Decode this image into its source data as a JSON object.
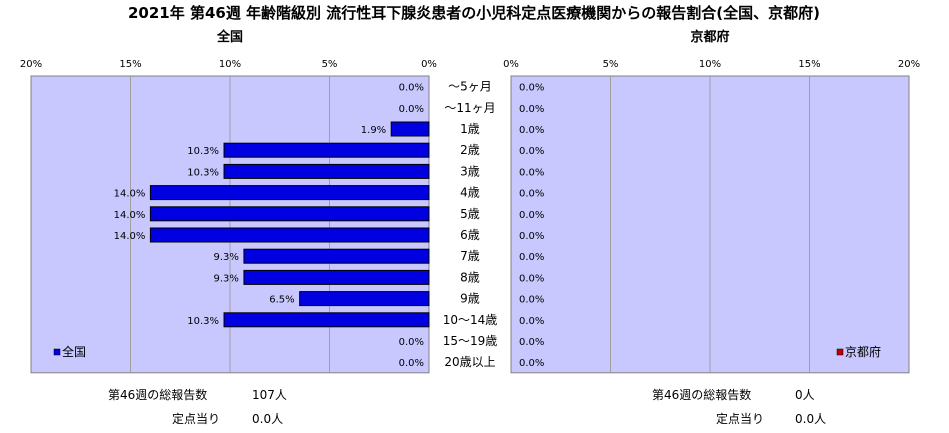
{
  "title": "2021年 第46週 年齢階級別 流行性耳下腺炎患者の小児科定点医療機関からの報告割合(全国、京都府)",
  "colors": {
    "plot_bg": "#C8C8FF",
    "national_bar": "#0000E0",
    "kyoto_bar": "#C00000"
  },
  "chart_data": [
    {
      "type": "bar",
      "orientation": "horizontal",
      "direction": "right-to-left",
      "title": "全国",
      "categories": [
        "～5ヶ月",
        "～11ヶ月",
        "1歳",
        "2歳",
        "3歳",
        "4歳",
        "5歳",
        "6歳",
        "7歳",
        "8歳",
        "9歳",
        "10～14歳",
        "15～19歳",
        "20歳以上"
      ],
      "series": [
        {
          "name": "全国",
          "values": [
            0.0,
            0.0,
            1.9,
            10.3,
            10.3,
            14.0,
            14.0,
            14.0,
            9.3,
            9.3,
            6.5,
            10.3,
            0.0,
            0.0
          ]
        }
      ],
      "data_labels": [
        "0.0%",
        "0.0%",
        "1.9%",
        "10.3%",
        "10.3%",
        "14.0%",
        "14.0%",
        "14.0%",
        "9.3%",
        "9.3%",
        "6.5%",
        "10.3%",
        "0.0%",
        "0.0%"
      ],
      "xlim": [
        0,
        20
      ],
      "tick_labels": [
        "20%",
        "15%",
        "10%",
        "5%",
        "0%"
      ],
      "legend": "bottom-left",
      "grid": true
    },
    {
      "type": "bar",
      "orientation": "horizontal",
      "direction": "left-to-right",
      "title": "京都府",
      "categories": [
        "～5ヶ月",
        "～11ヶ月",
        "1歳",
        "2歳",
        "3歳",
        "4歳",
        "5歳",
        "6歳",
        "7歳",
        "8歳",
        "9歳",
        "10～14歳",
        "15～19歳",
        "20歳以上"
      ],
      "series": [
        {
          "name": "京都府",
          "values": [
            0.0,
            0.0,
            0.0,
            0.0,
            0.0,
            0.0,
            0.0,
            0.0,
            0.0,
            0.0,
            0.0,
            0.0,
            0.0,
            0.0
          ]
        }
      ],
      "data_labels": [
        "0.0%",
        "0.0%",
        "0.0%",
        "0.0%",
        "0.0%",
        "0.0%",
        "0.0%",
        "0.0%",
        "0.0%",
        "0.0%",
        "0.0%",
        "0.0%",
        "0.0%",
        "0.0%"
      ],
      "xlim": [
        0,
        20
      ],
      "tick_labels": [
        "0%",
        "5%",
        "10%",
        "15%",
        "20%"
      ],
      "legend": "bottom-right",
      "grid": true
    }
  ],
  "footer": {
    "national": {
      "total_label": "第46週の総報告数",
      "total_value": "107人",
      "per_label": "定点当り",
      "per_value": "0.0人"
    },
    "kyoto": {
      "total_label": "第46週の総報告数",
      "total_value": "0人",
      "per_label": "定点当り",
      "per_value": "0.0人"
    }
  }
}
